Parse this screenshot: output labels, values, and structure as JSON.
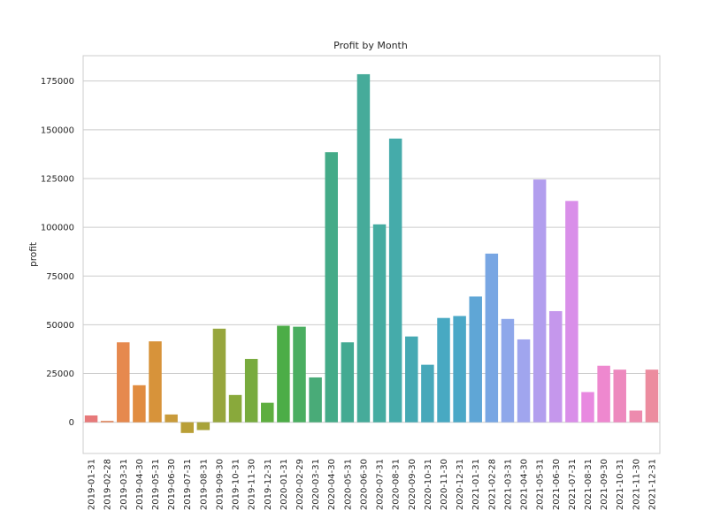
{
  "chart_data": {
    "type": "bar",
    "title": "Profit by Month",
    "xlabel": "",
    "ylabel": "profit",
    "ylim": [
      -16000,
      188000
    ],
    "yticks": [
      0,
      25000,
      50000,
      75000,
      100000,
      125000,
      150000,
      175000
    ],
    "ytick_labels": [
      "0",
      "25000",
      "50000",
      "75000",
      "100000",
      "125000",
      "150000",
      "175000"
    ],
    "grid": "horizontal",
    "legend": "none",
    "categories": [
      "2019-01-31",
      "2019-02-28",
      "2019-03-31",
      "2019-04-30",
      "2019-05-31",
      "2019-06-30",
      "2019-07-31",
      "2019-08-31",
      "2019-09-30",
      "2019-10-31",
      "2019-11-30",
      "2019-12-31",
      "2020-01-31",
      "2020-02-29",
      "2020-03-31",
      "2020-04-30",
      "2020-05-31",
      "2020-06-30",
      "2020-07-31",
      "2020-08-31",
      "2020-09-30",
      "2020-10-31",
      "2020-11-30",
      "2020-12-31",
      "2021-01-31",
      "2021-02-28",
      "2021-03-31",
      "2021-04-30",
      "2021-05-31",
      "2021-06-30",
      "2021-07-31",
      "2021-08-31",
      "2021-09-30",
      "2021-10-31",
      "2021-11-30",
      "2021-12-31"
    ],
    "values": [
      3500,
      700,
      41000,
      19000,
      41500,
      4000,
      -5500,
      -4000,
      48000,
      14000,
      32500,
      10000,
      49500,
      49000,
      23000,
      138500,
      41000,
      178500,
      101500,
      145500,
      44000,
      29500,
      53500,
      54500,
      64500,
      86500,
      53000,
      42500,
      124500,
      57000,
      113500,
      15500,
      29000,
      27000,
      6000,
      27000
    ],
    "colors": [
      "#e7797a",
      "#e0845b",
      "#e6894e",
      "#e18c40",
      "#d7933a",
      "#c99b3b",
      "#b99f36",
      "#a8a33a",
      "#97a63d",
      "#89a93b",
      "#78ab3e",
      "#5eae3f",
      "#4cad47",
      "#4aae61",
      "#49ab78",
      "#44ab88",
      "#43aa92",
      "#46ab9a",
      "#45aca1",
      "#45abaa",
      "#45a9b3",
      "#47a8ba",
      "#48a9c2",
      "#4aa8c7",
      "#5fa6d6",
      "#78a6e3",
      "#8ea7ea",
      "#a0a5ee",
      "#b29eee",
      "#c597ec",
      "#d98fe9",
      "#e889e0",
      "#ee88cf",
      "#ed89be",
      "#ed8bae",
      "#ec8c9f"
    ]
  }
}
